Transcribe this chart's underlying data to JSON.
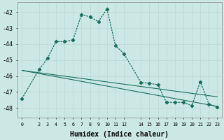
{
  "xlabel": "Humidex (Indice chaleur)",
  "background_color": "#cce8e4",
  "grid_color": "#b8d8d4",
  "line_color": "#1a6e60",
  "xlim": [
    -0.5,
    23.5
  ],
  "ylim": [
    -48.6,
    -41.4
  ],
  "yticks": [
    -42,
    -43,
    -44,
    -45,
    -46,
    -47,
    -48
  ],
  "xticks": [
    0,
    2,
    3,
    4,
    5,
    6,
    7,
    8,
    9,
    10,
    11,
    12,
    14,
    15,
    16,
    17,
    18,
    19,
    20,
    21,
    22,
    23
  ],
  "line1_x": [
    0,
    2,
    3,
    4,
    5,
    6,
    7,
    8,
    9,
    10,
    11,
    12,
    14,
    15,
    16,
    17,
    18,
    19,
    20,
    21,
    22,
    23
  ],
  "line1_y": [
    -47.4,
    -45.6,
    -44.9,
    -43.85,
    -43.85,
    -43.75,
    -42.15,
    -42.3,
    -42.6,
    -41.8,
    -44.1,
    -44.6,
    -46.4,
    -46.45,
    -46.55,
    -47.65,
    -47.65,
    -47.65,
    -47.85,
    -46.35,
    -47.75,
    -47.95
  ],
  "line2_x": [
    0,
    2,
    3,
    4,
    5,
    6,
    7,
    8,
    9,
    10,
    11,
    12,
    14,
    15,
    16,
    17,
    18,
    19,
    20,
    21,
    22,
    23
  ]
}
